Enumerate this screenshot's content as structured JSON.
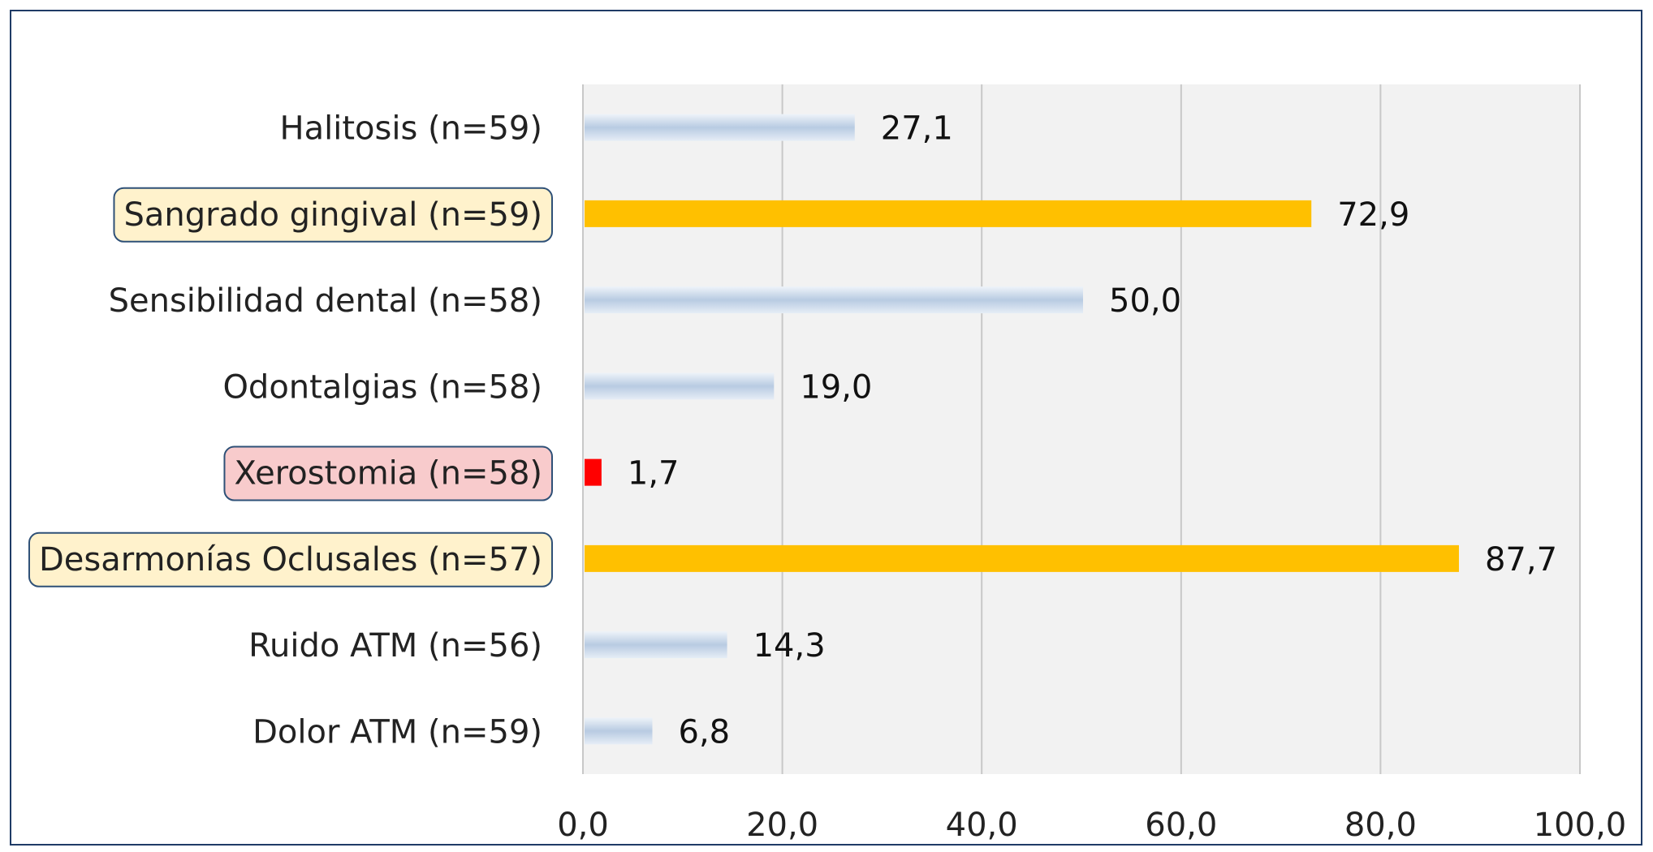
{
  "chart_data": {
    "type": "bar",
    "orientation": "horizontal",
    "title": "",
    "xlabel": "",
    "ylabel": "",
    "categories": [
      "Halitosis (n=59)",
      "Sangrado gingival (n=59)",
      "Sensibilidad dental (n=58)",
      "Odontalgias (n=58)",
      "Xerostomia (n=58)",
      "Desarmonías Oclusales (n=57)",
      "Ruido ATM (n=56)",
      "Dolor ATM (n=59)"
    ],
    "values": [
      27.1,
      72.9,
      50.0,
      19.0,
      1.7,
      87.7,
      14.3,
      6.8
    ],
    "value_labels": [
      "27,1",
      "72,9",
      "50,0",
      "19,0",
      "1,7",
      "87,7",
      "14,3",
      "6,8"
    ],
    "highlight": [
      "none",
      "yellow",
      "none",
      "none",
      "red",
      "yellow",
      "none",
      "none"
    ],
    "xlim": [
      0,
      100
    ],
    "xticks": [
      0,
      20,
      40,
      60,
      80,
      100
    ],
    "xtick_labels": [
      "0,0",
      "20,0",
      "40,0",
      "60,0",
      "80,0",
      "100,0"
    ],
    "grid": true,
    "legend": "none",
    "colors": {
      "default_bar": "#c9d8ea",
      "yellow_bar": "#ffc000",
      "red_bar": "#ff0000",
      "yellow_label_bg": "#fff2cc",
      "red_label_bg": "#f8cbcc",
      "label_border": "#2e5077",
      "plot_bg": "#f2f2f2",
      "grid": "#c8c8c8",
      "frame": "#1f3b66"
    }
  }
}
